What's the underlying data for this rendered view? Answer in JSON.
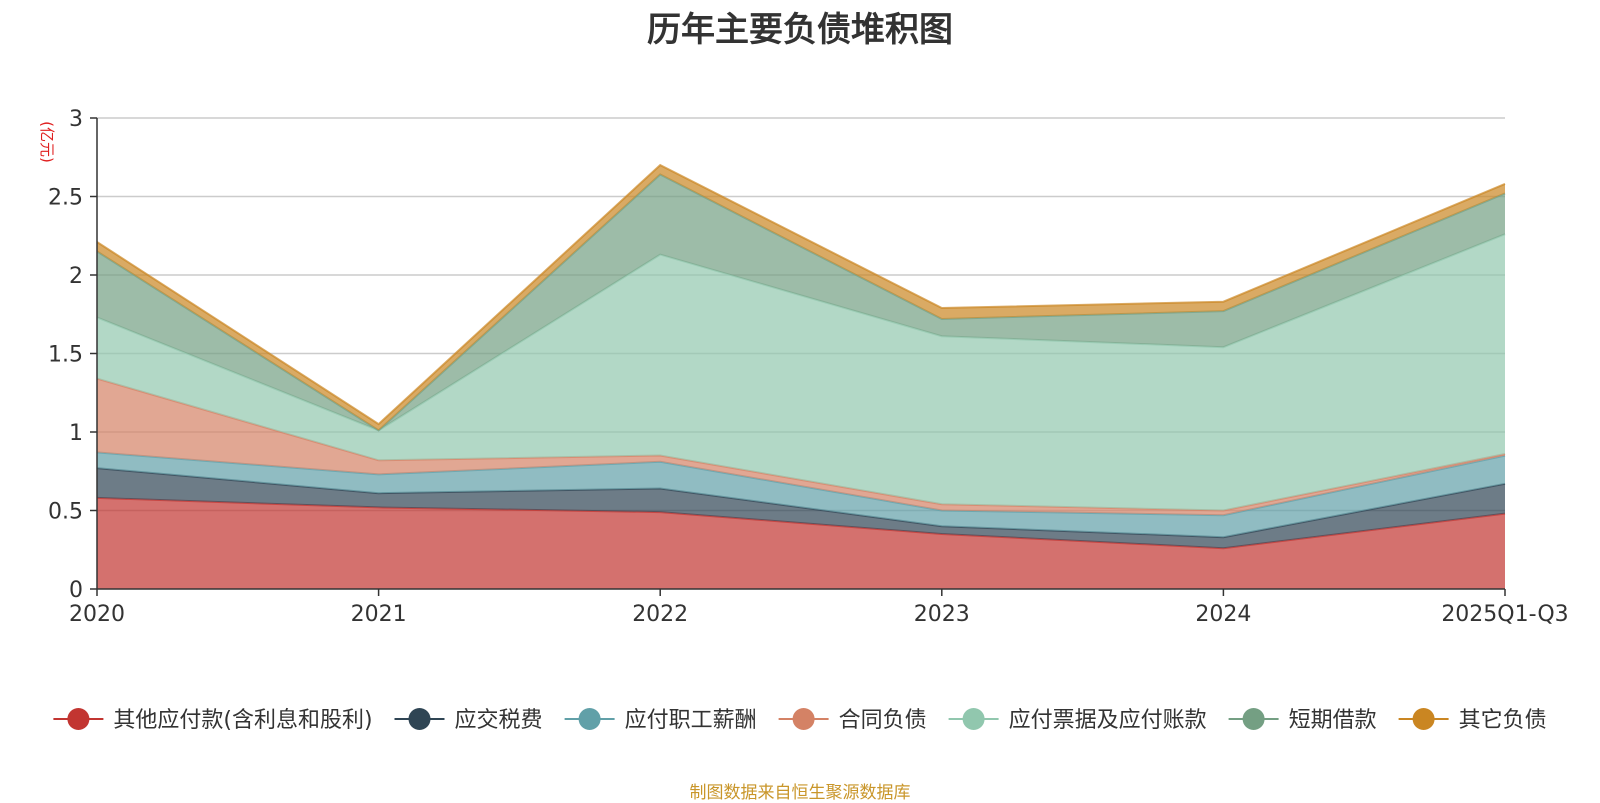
{
  "chart_data": {
    "type": "area",
    "stacked": true,
    "title": "历年主要负债堆积图",
    "ylabel": "(亿元)",
    "xlabel": "",
    "categories": [
      "2020",
      "2021",
      "2022",
      "2023",
      "2024",
      "2025Q1-Q3"
    ],
    "ylim": [
      0,
      3
    ],
    "yticks": [
      "0",
      "0.5",
      "1",
      "1.5",
      "2",
      "2.5",
      "3"
    ],
    "grid": true,
    "legend_position": "bottom",
    "series": [
      {
        "name": "其他应付款(含利息和股利)",
        "color": "#c23531",
        "values": [
          0.58,
          0.52,
          0.49,
          0.35,
          0.26,
          0.48
        ]
      },
      {
        "name": "应交税费",
        "color": "#2f4554",
        "values": [
          0.19,
          0.09,
          0.15,
          0.05,
          0.07,
          0.19
        ]
      },
      {
        "name": "应付职工薪酬",
        "color": "#61a0a8",
        "values": [
          0.1,
          0.12,
          0.17,
          0.1,
          0.14,
          0.18
        ]
      },
      {
        "name": "合同负债",
        "color": "#d48265",
        "values": [
          0.47,
          0.09,
          0.04,
          0.04,
          0.03,
          0.01
        ]
      },
      {
        "name": "应付票据及应付账款",
        "color": "#91c7ae",
        "values": [
          0.39,
          0.19,
          1.28,
          1.07,
          1.04,
          1.4
        ]
      },
      {
        "name": "短期借款",
        "color": "#749f83",
        "values": [
          0.42,
          0.0,
          0.51,
          0.11,
          0.23,
          0.26
        ]
      },
      {
        "name": "其它负债",
        "color": "#ca8622",
        "values": [
          0.06,
          0.04,
          0.06,
          0.07,
          0.06,
          0.06
        ]
      }
    ]
  },
  "footer": {
    "source": "制图数据来自恒生聚源数据库"
  }
}
